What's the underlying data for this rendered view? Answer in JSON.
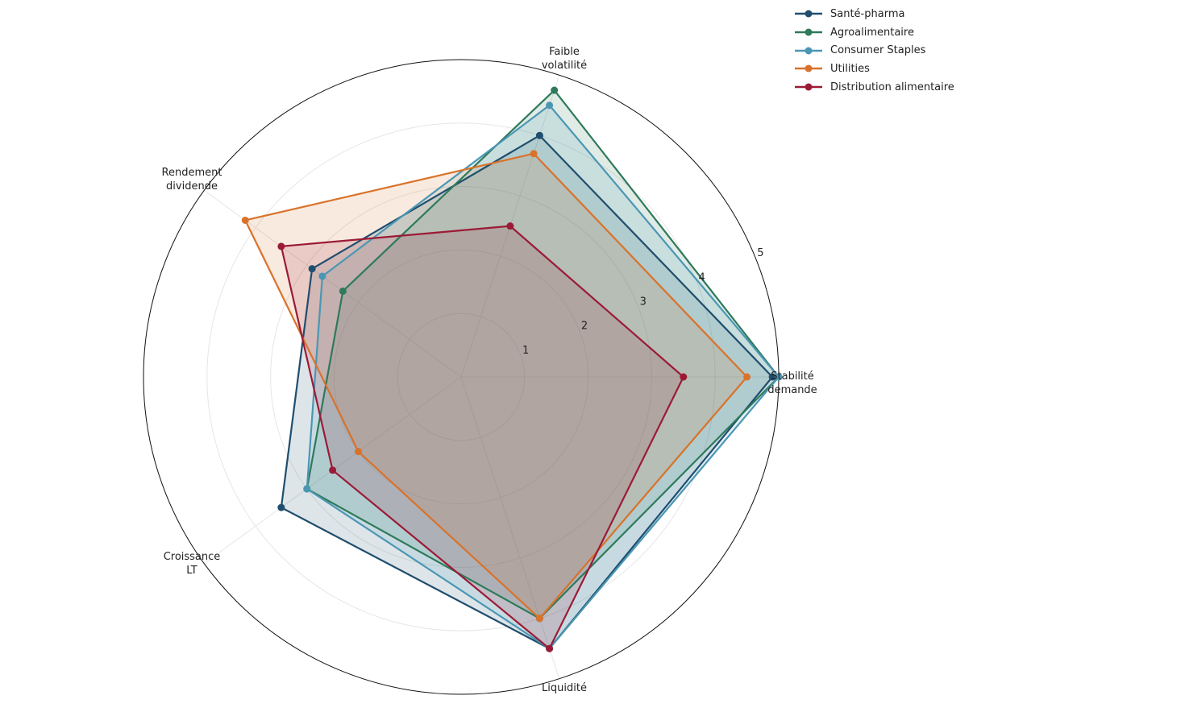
{
  "chart_data": {
    "type": "radar",
    "axes": [
      "Stabilité demande",
      "Faible volatilité",
      "Rendement dividende",
      "Croissance LT",
      "Liquidité"
    ],
    "axis_label_lines": [
      [
        "Stabilité",
        "demande"
      ],
      [
        "Faible",
        "volatilité"
      ],
      [
        "Rendement",
        "dividende"
      ],
      [
        "Croissance",
        "LT"
      ],
      [
        "Liquidité"
      ]
    ],
    "rlim": [
      0,
      5
    ],
    "radial_ticks": [
      "1",
      "2",
      "3",
      "4",
      "5"
    ],
    "grid": true,
    "legend_position": "top-right",
    "series": [
      {
        "name": "Santé-pharma",
        "color": "#1f4e6e",
        "values": [
          4.9,
          4.0,
          2.9,
          3.5,
          4.5
        ]
      },
      {
        "name": "Agroalimentaire",
        "color": "#2e7a5a",
        "values": [
          5.0,
          4.75,
          2.3,
          3.0,
          4.0
        ]
      },
      {
        "name": "Consumer Staples",
        "color": "#4a97b4",
        "values": [
          5.0,
          4.5,
          2.7,
          3.0,
          4.5
        ]
      },
      {
        "name": "Utilities",
        "color": "#d9722a",
        "values": [
          4.5,
          3.7,
          4.2,
          2.0,
          4.0
        ]
      },
      {
        "name": "Distribution alimentaire",
        "color": "#9b1b36",
        "values": [
          3.5,
          2.5,
          3.5,
          2.5,
          4.5
        ]
      }
    ]
  }
}
